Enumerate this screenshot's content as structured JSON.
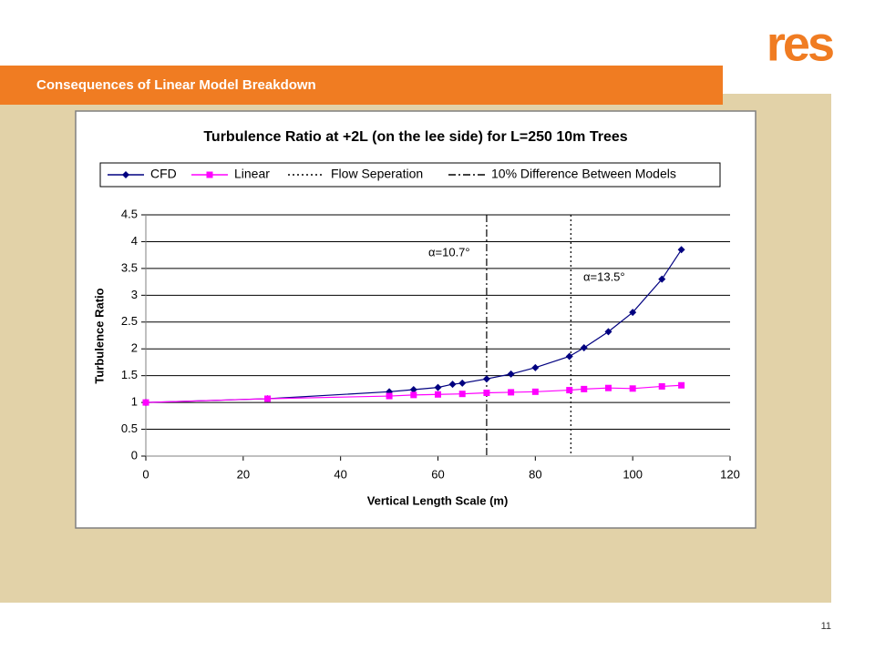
{
  "slide": {
    "logo": "res",
    "heading": "Consequences of Linear Model Breakdown",
    "page_number": "11"
  },
  "chart_data": {
    "type": "line",
    "title": "Turbulence Ratio at +2L (on the lee side) for L=250 10m Trees",
    "x_label": "Vertical Length Scale (m)",
    "y_label": "Turbulence Ratio",
    "xlim": [
      0,
      120
    ],
    "xticks": [
      0,
      20,
      40,
      60,
      80,
      100,
      120
    ],
    "ylim": [
      0,
      4.5
    ],
    "yticks": [
      0,
      0.5,
      1,
      1.5,
      2,
      2.5,
      3,
      3.5,
      4,
      4.5
    ],
    "grid": true,
    "series": [
      {
        "name": "CFD",
        "color": "#000080",
        "marker": "diamond",
        "x": [
          0,
          25,
          50,
          55,
          60,
          63,
          65,
          70,
          75,
          80,
          87,
          90,
          95,
          100,
          106,
          110
        ],
        "values": [
          1.0,
          1.07,
          1.2,
          1.24,
          1.28,
          1.34,
          1.36,
          1.44,
          1.53,
          1.65,
          1.86,
          2.02,
          2.32,
          2.68,
          3.3,
          3.85
        ]
      },
      {
        "name": "Linear",
        "color": "#ff00ff",
        "marker": "square",
        "x": [
          0,
          25,
          50,
          55,
          60,
          65,
          70,
          75,
          80,
          87,
          90,
          95,
          100,
          106,
          110
        ],
        "values": [
          1.0,
          1.07,
          1.12,
          1.14,
          1.15,
          1.16,
          1.18,
          1.19,
          1.2,
          1.23,
          1.25,
          1.27,
          1.26,
          1.3,
          1.32
        ]
      }
    ],
    "vlines": [
      {
        "name": "Flow Seperation",
        "x": 87.3,
        "dash": "2,3",
        "annotation": "α=13.5°"
      },
      {
        "name": "10% Difference Between Models",
        "x": 70,
        "dash": "8,3,2,3",
        "annotation": "α=10.7°"
      }
    ]
  }
}
